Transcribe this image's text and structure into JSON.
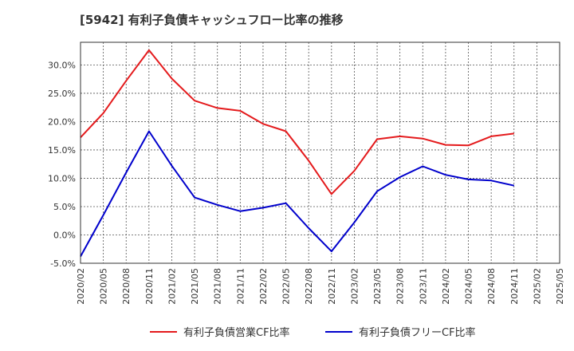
{
  "title": "[5942]  有利子負債キャッシュフロー比率の推移",
  "chart_data": {
    "type": "line",
    "x": [
      "2020/02",
      "2020/05",
      "2020/08",
      "2020/11",
      "2021/02",
      "2021/05",
      "2021/08",
      "2021/11",
      "2022/02",
      "2022/05",
      "2022/08",
      "2022/11",
      "2023/02",
      "2023/05",
      "2023/08",
      "2023/11",
      "2024/02",
      "2024/05",
      "2024/08",
      "2024/11",
      "2025/02",
      "2025/05"
    ],
    "ylim": [
      -5,
      34
    ],
    "yticks": [
      -5,
      0,
      5,
      10,
      15,
      20,
      25,
      30
    ],
    "ytick_labels": [
      "-5.0%",
      "0.0%",
      "5.0%",
      "10.0%",
      "15.0%",
      "20.0%",
      "25.0%",
      "30.0%"
    ],
    "grid": true,
    "legend_position": "bottom",
    "series": [
      {
        "name": "有利子負債営業CF比率",
        "color": "#e41a1c",
        "values": [
          17.2,
          21.5,
          27.2,
          32.6,
          27.6,
          23.7,
          22.4,
          21.9,
          19.6,
          18.3,
          13.1,
          7.2,
          11.3,
          16.9,
          17.4,
          17.0,
          15.9,
          15.8,
          17.4,
          17.9,
          null,
          null
        ]
      },
      {
        "name": "有利子負債フリーCF比率",
        "color": "#0000cc",
        "values": [
          -3.8,
          3.5,
          11.0,
          18.3,
          12.2,
          6.6,
          5.3,
          4.2,
          4.8,
          5.6,
          1.2,
          -2.9,
          2.2,
          7.7,
          10.2,
          12.1,
          10.6,
          9.8,
          9.6,
          8.7,
          null,
          null
        ]
      }
    ]
  }
}
